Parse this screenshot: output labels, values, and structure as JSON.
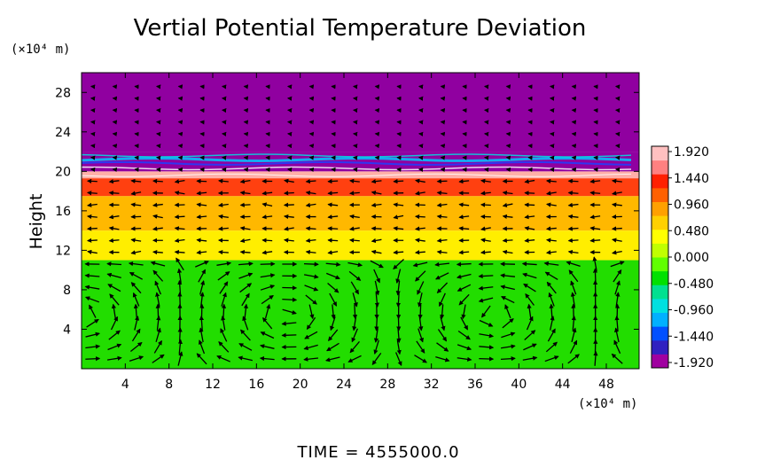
{
  "chart_data": {
    "type": "heatmap",
    "title": "Vertial Potential Temperature Deviation",
    "ylabel": "Height",
    "x_unit": "(×10⁴ m)",
    "y_unit": "(×10⁴ m)",
    "x_ticks": [
      4,
      8,
      12,
      16,
      20,
      24,
      28,
      32,
      36,
      40,
      44,
      48
    ],
    "y_ticks": [
      4,
      8,
      12,
      16,
      20,
      24,
      28
    ],
    "xlim": [
      0,
      51
    ],
    "ylim": [
      0,
      30
    ],
    "footer": "TIME  =  4555000.0",
    "colorbar": {
      "ticks": [
        "1.920",
        "1.440",
        "0.960",
        "0.480",
        "0.000",
        "-0.480",
        "-0.960",
        "-1.440",
        "-1.920"
      ],
      "range": [
        -1.92,
        1.92
      ],
      "colors": [
        "#a000a0",
        "#3020c0",
        "#0050ff",
        "#00b0ff",
        "#00e0e0",
        "#00e090",
        "#00e000",
        "#60ff00",
        "#c0ff00",
        "#ffff00",
        "#ffd000",
        "#ffa000",
        "#ff6000",
        "#ff2000",
        "#ff8080",
        "#ffc0c0"
      ]
    },
    "bands": [
      {
        "y0": 0,
        "y1": 11,
        "value": 0.1,
        "color": "#22dd00"
      },
      {
        "y0": 11,
        "y1": 14,
        "value": 0.9,
        "color": "#ffee00"
      },
      {
        "y0": 14,
        "y1": 17.5,
        "value": 1.2,
        "color": "#ffb800"
      },
      {
        "y0": 17.5,
        "y1": 19.3,
        "value": 1.6,
        "color": "#ff4010"
      },
      {
        "y0": 19.3,
        "y1": 20,
        "value": 1.9,
        "color": "#ffb0a8"
      },
      {
        "y0": 20,
        "y1": 22,
        "value": -1.9,
        "color": "#9000a0"
      },
      {
        "y0": 22,
        "y1": 30,
        "value": -1.92,
        "color": "#9000a0"
      }
    ]
  }
}
